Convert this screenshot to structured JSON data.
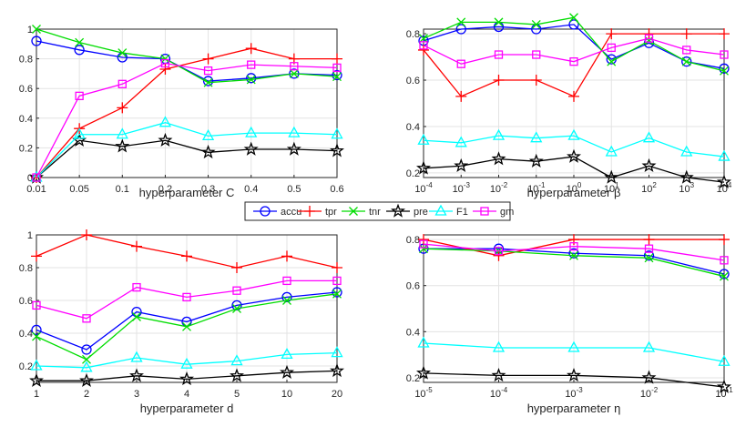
{
  "figure": {
    "legend": [
      {
        "name": "accu",
        "color": "#0000ff",
        "marker": "circle"
      },
      {
        "name": "tpr",
        "color": "#ff0000",
        "marker": "plus"
      },
      {
        "name": "tnr",
        "color": "#00dd00",
        "marker": "x"
      },
      {
        "name": "pre",
        "color": "#000000",
        "marker": "star"
      },
      {
        "name": "F1",
        "color": "#00ffff",
        "marker": "triangle"
      },
      {
        "name": "gm",
        "color": "#ff00ff",
        "marker": "square"
      }
    ]
  },
  "chart_data": [
    {
      "type": "line",
      "title": "",
      "xlabel": "hyperparameter C",
      "ylabel": "",
      "categories": [
        "0.01",
        "0.05",
        "0.1",
        "0.2",
        "0.3",
        "0.4",
        "0.5",
        "0.6"
      ],
      "ylim": [
        0,
        1
      ],
      "yticks": [
        "0",
        "0.2",
        "0.4",
        "0.6",
        "0.8",
        "1"
      ],
      "grid": true,
      "series": [
        {
          "name": "accu",
          "values": [
            0.92,
            0.86,
            0.81,
            0.8,
            0.65,
            0.67,
            0.7,
            0.69
          ]
        },
        {
          "name": "tpr",
          "values": [
            0.0,
            0.33,
            0.47,
            0.73,
            0.8,
            0.87,
            0.8,
            0.8
          ]
        },
        {
          "name": "tnr",
          "values": [
            1.0,
            0.91,
            0.84,
            0.8,
            0.64,
            0.66,
            0.7,
            0.68
          ]
        },
        {
          "name": "pre",
          "values": [
            0.0,
            0.25,
            0.21,
            0.25,
            0.17,
            0.19,
            0.19,
            0.18
          ]
        },
        {
          "name": "F1",
          "values": [
            0.0,
            0.29,
            0.29,
            0.37,
            0.28,
            0.3,
            0.3,
            0.29
          ]
        },
        {
          "name": "gm",
          "values": [
            0.0,
            0.55,
            0.63,
            0.77,
            0.72,
            0.76,
            0.75,
            0.74
          ]
        }
      ]
    },
    {
      "type": "line",
      "title": "",
      "xlabel": "hyperparameter β",
      "ylabel": "",
      "categories": [
        "10^-4",
        "10^-3",
        "10^-2",
        "10^-1",
        "10^0",
        "10^1",
        "10^2",
        "10^3",
        "10^4"
      ],
      "ylim": [
        0.18,
        0.82
      ],
      "yticks": [
        "0.2",
        "0.4",
        "0.6",
        "0.8"
      ],
      "grid": true,
      "series": [
        {
          "name": "accu",
          "values": [
            0.77,
            0.82,
            0.83,
            0.82,
            0.84,
            0.69,
            0.76,
            0.68,
            0.65
          ]
        },
        {
          "name": "tpr",
          "values": [
            0.73,
            0.53,
            0.6,
            0.6,
            0.53,
            0.8,
            0.8,
            0.8,
            0.8
          ]
        },
        {
          "name": "tnr",
          "values": [
            0.78,
            0.85,
            0.85,
            0.84,
            0.87,
            0.68,
            0.77,
            0.68,
            0.64
          ]
        },
        {
          "name": "pre",
          "values": [
            0.22,
            0.23,
            0.26,
            0.25,
            0.27,
            0.18,
            0.23,
            0.18,
            0.16
          ]
        },
        {
          "name": "F1",
          "values": [
            0.34,
            0.33,
            0.36,
            0.35,
            0.36,
            0.29,
            0.35,
            0.29,
            0.27
          ]
        },
        {
          "name": "gm",
          "values": [
            0.75,
            0.67,
            0.71,
            0.71,
            0.68,
            0.74,
            0.78,
            0.73,
            0.71
          ]
        }
      ]
    },
    {
      "type": "line",
      "title": "",
      "xlabel": "hyperparameter d",
      "ylabel": "",
      "categories": [
        "1",
        "2",
        "3",
        "4",
        "5",
        "10",
        "20"
      ],
      "ylim": [
        0.1,
        1
      ],
      "yticks": [
        "0.2",
        "0.4",
        "0.6",
        "0.8",
        "1"
      ],
      "grid": true,
      "series": [
        {
          "name": "accu",
          "values": [
            0.42,
            0.3,
            0.53,
            0.47,
            0.57,
            0.62,
            0.65
          ]
        },
        {
          "name": "tpr",
          "values": [
            0.87,
            1.0,
            0.93,
            0.87,
            0.8,
            0.87,
            0.8
          ]
        },
        {
          "name": "tnr",
          "values": [
            0.38,
            0.24,
            0.5,
            0.44,
            0.55,
            0.6,
            0.64
          ]
        },
        {
          "name": "pre",
          "values": [
            0.11,
            0.11,
            0.14,
            0.12,
            0.14,
            0.16,
            0.17
          ]
        },
        {
          "name": "F1",
          "values": [
            0.2,
            0.19,
            0.25,
            0.21,
            0.23,
            0.27,
            0.28
          ]
        },
        {
          "name": "gm",
          "values": [
            0.57,
            0.49,
            0.68,
            0.62,
            0.66,
            0.72,
            0.72
          ]
        }
      ]
    },
    {
      "type": "line",
      "title": "",
      "xlabel": "hyperparameter η",
      "ylabel": "",
      "categories": [
        "10^-5",
        "10^-4",
        "10^-3",
        "10^-2",
        "10^-1"
      ],
      "ylim": [
        0.18,
        0.82
      ],
      "yticks": [
        "0.2",
        "0.4",
        "0.6",
        "0.8"
      ],
      "grid": true,
      "series": [
        {
          "name": "accu",
          "values": [
            0.76,
            0.76,
            0.74,
            0.73,
            0.65
          ]
        },
        {
          "name": "tpr",
          "values": [
            0.8,
            0.73,
            0.8,
            0.8,
            0.8
          ]
        },
        {
          "name": "tnr",
          "values": [
            0.76,
            0.75,
            0.73,
            0.72,
            0.64
          ]
        },
        {
          "name": "pre",
          "values": [
            0.22,
            0.21,
            0.21,
            0.2,
            0.16
          ]
        },
        {
          "name": "F1",
          "values": [
            0.35,
            0.33,
            0.33,
            0.33,
            0.27
          ]
        },
        {
          "name": "gm",
          "values": [
            0.78,
            0.75,
            0.77,
            0.76,
            0.71
          ]
        }
      ]
    }
  ]
}
